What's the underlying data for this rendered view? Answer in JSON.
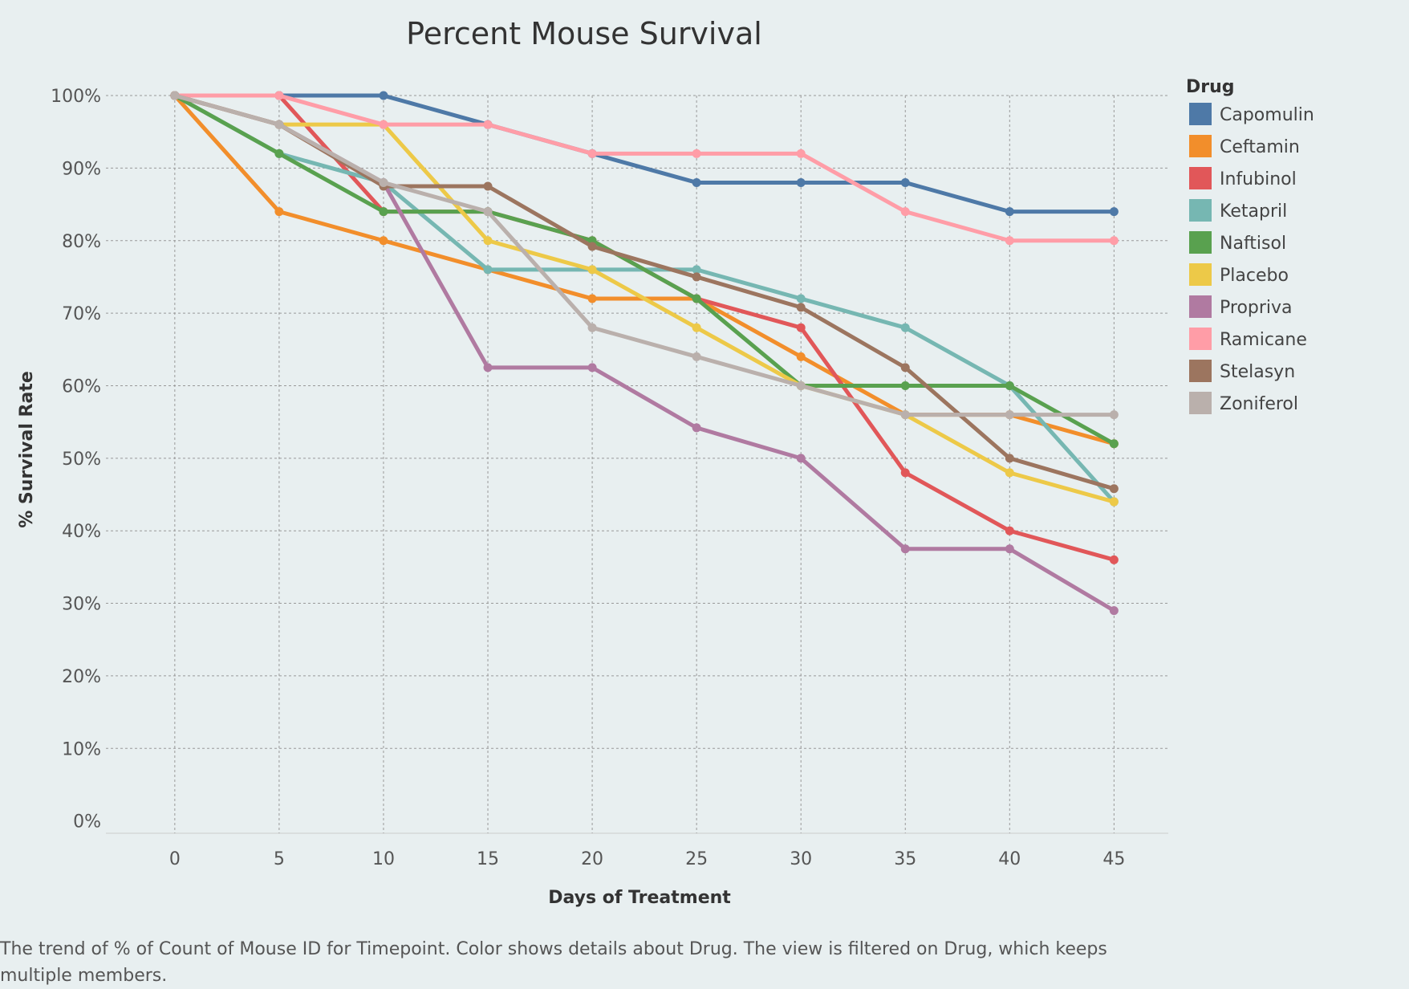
{
  "chart_data": {
    "type": "line",
    "title": "Percent Mouse Survival",
    "xlabel": "Days of Treatment",
    "ylabel": "% Survival Rate",
    "x": [
      0,
      5,
      10,
      15,
      20,
      25,
      30,
      35,
      40,
      45
    ],
    "x_tick_labels": [
      "0",
      "5",
      "10",
      "15",
      "20",
      "25",
      "30",
      "35",
      "40",
      "45"
    ],
    "y_tick_values": [
      0,
      10,
      20,
      30,
      40,
      50,
      60,
      70,
      80,
      90,
      100
    ],
    "y_tick_labels": [
      "0%",
      "10%",
      "20%",
      "30%",
      "40%",
      "50%",
      "60%",
      "70%",
      "80%",
      "90%",
      "100%"
    ],
    "xlim": [
      -3.3,
      47.6
    ],
    "ylim": [
      -1.7,
      101
    ],
    "grid": true,
    "legend_title": "Drug",
    "legend_position": "right",
    "series": [
      {
        "name": "Capomulin",
        "color": "#4e79a7",
        "values": [
          100,
          100,
          100,
          96,
          92,
          88,
          88,
          88,
          84,
          84
        ]
      },
      {
        "name": "Ceftamin",
        "color": "#f28e2b",
        "values": [
          100,
          84,
          80,
          76,
          72,
          72,
          64,
          56,
          56,
          52
        ]
      },
      {
        "name": "Infubinol",
        "color": "#e15759",
        "values": [
          100,
          100,
          84,
          84,
          80,
          72,
          68,
          48,
          40,
          36
        ]
      },
      {
        "name": "Ketapril",
        "color": "#76b7b2",
        "values": [
          100,
          92,
          88,
          76,
          76,
          76,
          72,
          68,
          60,
          44
        ]
      },
      {
        "name": "Naftisol",
        "color": "#59a14f",
        "values": [
          100,
          92,
          84,
          84,
          80,
          72,
          60,
          60,
          60,
          52
        ]
      },
      {
        "name": "Placebo",
        "color": "#edc948",
        "values": [
          100,
          96,
          96,
          80,
          76,
          68,
          60,
          56,
          48,
          44
        ]
      },
      {
        "name": "Propriva",
        "color": "#b07aa1",
        "values": [
          100,
          96,
          88,
          62.5,
          62.5,
          54.2,
          50,
          37.5,
          37.5,
          29
        ]
      },
      {
        "name": "Ramicane",
        "color": "#ff9da7",
        "values": [
          100,
          100,
          96,
          96,
          92,
          92,
          92,
          84,
          80,
          80
        ]
      },
      {
        "name": "Stelasyn",
        "color": "#9c755f",
        "values": [
          100,
          96,
          87.5,
          87.5,
          79.2,
          75,
          70.8,
          62.5,
          50,
          45.8
        ]
      },
      {
        "name": "Zoniferol",
        "color": "#bab0ac",
        "values": [
          100,
          96,
          88,
          84,
          68,
          64,
          60,
          56,
          56,
          56
        ]
      }
    ]
  },
  "caption_text": "The trend of % of Count of Mouse ID for Timepoint.  Color shows details about Drug. The view is filtered on Drug, which keeps multiple members."
}
